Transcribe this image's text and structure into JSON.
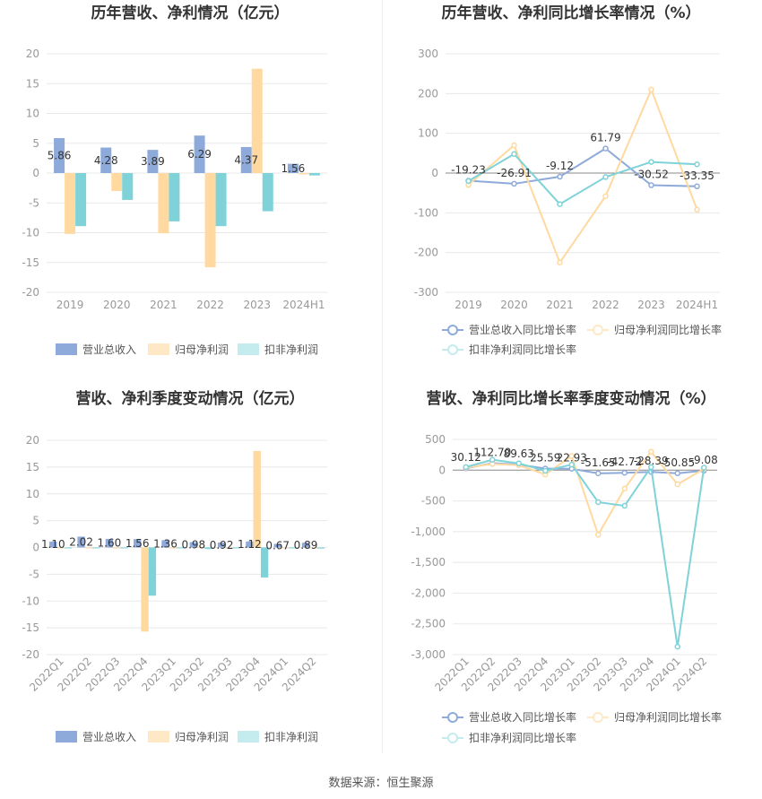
{
  "source": "数据来源：恒生聚源",
  "colors": {
    "revenue": "#8eaadb",
    "net_profit": "#ffd9a0",
    "deducted": "#7fd3d8",
    "revenue_light": "#b8cbe8",
    "net_profit_light": "#ffe8c6",
    "deducted_light": "#c4ecee",
    "grid": "#e8e8e8",
    "axis_text": "#999999",
    "label_text": "#333333",
    "title_text": "#333333"
  },
  "chart_data": [
    {
      "id": "annual-profit",
      "type": "bar",
      "title": "历年营收、净利情况（亿元）",
      "categories": [
        "2019",
        "2020",
        "2021",
        "2022",
        "2023",
        "2024H1"
      ],
      "ylim": [
        -20,
        20
      ],
      "yticks": [
        20,
        15,
        10,
        5,
        0,
        -5,
        -10,
        -15,
        -20
      ],
      "ytick_labels": [
        "20",
        "15",
        "10",
        "5",
        "0",
        "-5",
        "-10",
        "-15",
        "-20"
      ],
      "series": [
        {
          "name": "营业总收入",
          "values": [
            5.86,
            4.28,
            3.89,
            6.29,
            4.37,
            1.56
          ]
        },
        {
          "name": "归母净利润",
          "values": [
            -10.2,
            -3.0,
            -10.1,
            -15.8,
            17.5,
            -0.2
          ]
        },
        {
          "name": "扣非净利润",
          "values": [
            -8.9,
            -4.5,
            -8.1,
            -8.9,
            -6.4,
            -0.4
          ]
        }
      ],
      "data_labels": [
        "5.86",
        "4.28",
        "3.89",
        "6.29",
        "4.37",
        "1.56"
      ],
      "grid": true,
      "legend": "bottom"
    },
    {
      "id": "annual-growth",
      "type": "line",
      "title": "历年营收、净利同比增长率情况（%）",
      "categories": [
        "2019",
        "2020",
        "2021",
        "2022",
        "2023",
        "2024H1"
      ],
      "ylim": [
        -300,
        300
      ],
      "yticks": [
        300,
        200,
        100,
        0,
        -100,
        -200,
        -300
      ],
      "ytick_labels": [
        "300",
        "200",
        "100",
        "0",
        "-100",
        "-200",
        "-300"
      ],
      "series": [
        {
          "name": "营业总收入同比增长率",
          "values": [
            -19.23,
            -26.91,
            -9.12,
            61.79,
            -30.52,
            -33.35
          ]
        },
        {
          "name": "归母净利润同比增长率",
          "values": [
            -30,
            70,
            -225,
            -58,
            210,
            -92
          ]
        },
        {
          "name": "扣非净利润同比增长率",
          "values": [
            -20,
            48,
            -78,
            -10,
            28,
            22
          ]
        }
      ],
      "data_labels": [
        "-19.23",
        "-26.91",
        "-9.12",
        "61.79",
        "-30.52",
        "-33.35"
      ],
      "grid": true,
      "legend": "bottom"
    },
    {
      "id": "quarterly-profit",
      "type": "bar",
      "title": "营收、净利季度变动情况（亿元）",
      "categories": [
        "2022Q1",
        "2022Q2",
        "2022Q3",
        "2022Q4",
        "2023Q1",
        "2023Q2",
        "2023Q3",
        "2023Q4",
        "2024Q1",
        "2024Q2"
      ],
      "ylim": [
        -20,
        20
      ],
      "yticks": [
        20,
        15,
        10,
        5,
        0,
        -5,
        -10,
        -15,
        -20
      ],
      "ytick_labels": [
        "20",
        "15",
        "10",
        "5",
        "0",
        "-5",
        "-10",
        "-15",
        "-20"
      ],
      "series": [
        {
          "name": "营业总收入",
          "values": [
            1.1,
            2.02,
            1.6,
            1.56,
            1.36,
            0.98,
            0.92,
            1.12,
            0.67,
            0.89
          ]
        },
        {
          "name": "归母净利润",
          "values": [
            -0.1,
            -0.1,
            -0.1,
            -15.7,
            -0.1,
            0.1,
            -0.1,
            18.0,
            -0.1,
            -0.1
          ]
        },
        {
          "name": "扣非净利润",
          "values": [
            -0.1,
            -0.1,
            -0.1,
            -9.0,
            -0.1,
            -0.3,
            -0.1,
            -5.6,
            -0.1,
            -0.2
          ]
        }
      ],
      "data_labels": [
        "1.10",
        "2.02",
        "1.60",
        "1.56",
        "1.36",
        "0.98",
        "0.92",
        "1.12",
        "0.67",
        "0.89"
      ],
      "grid": true,
      "legend": "bottom"
    },
    {
      "id": "quarterly-growth",
      "type": "line",
      "title": "营收、净利同比增长率季度变动情况（%）",
      "categories": [
        "2022Q1",
        "2022Q2",
        "2022Q3",
        "2022Q4",
        "2023Q1",
        "2023Q2",
        "2023Q3",
        "2023Q4",
        "2024Q1",
        "2024Q2"
      ],
      "ylim": [
        -3000,
        500
      ],
      "yticks": [
        500,
        0,
        -500,
        -1000,
        -1500,
        -2000,
        -2500,
        -3000
      ],
      "ytick_labels": [
        "500",
        "0",
        "-500",
        "-1,000",
        "-1,500",
        "-2,000",
        "-2,500",
        "-3,000"
      ],
      "series": [
        {
          "name": "营业总收入同比增长率",
          "values": [
            30.12,
            112.7,
            89.63,
            25.59,
            22.93,
            -51.65,
            -42.72,
            -28.39,
            -50.85,
            -9.08
          ]
        },
        {
          "name": "归母净利润同比增长率",
          "values": [
            40,
            100,
            80,
            -70,
            230,
            -1050,
            -300,
            300,
            -230,
            20
          ]
        },
        {
          "name": "扣非净利润同比增长率",
          "values": [
            50,
            170,
            110,
            -10,
            90,
            -520,
            -580,
            50,
            -2870,
            40
          ]
        }
      ],
      "data_labels": [
        "30.12",
        "112.70",
        "89.63",
        "25.59",
        "22.93",
        "-51.65",
        "-42.72",
        "-28.39",
        "-50.85",
        "-9.08"
      ],
      "grid": true,
      "legend": "bottom"
    }
  ]
}
